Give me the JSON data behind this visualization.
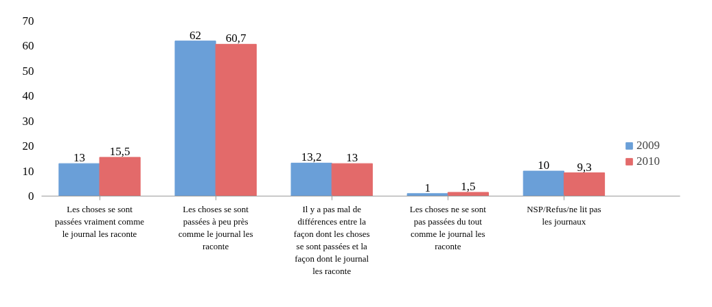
{
  "chart_data": {
    "type": "bar",
    "categories": [
      "Les choses se sont passées vraiment comme le journal les raconte",
      "Les choses se sont passées à peu près comme le journal les raconte",
      "Il y a pas mal de différences entre la façon dont les choses se sont passées et la façon dont le journal les raconte",
      "Les choses ne se sont pas passées du tout comme le journal les raconte",
      "NSP/Refus/ne lit pas les journaux"
    ],
    "series": [
      {
        "name": "2009",
        "color": "#6a9fd8",
        "values": [
          13,
          62,
          13.2,
          1,
          10
        ],
        "value_labels": [
          "13",
          "62",
          "13,2",
          "1",
          "10"
        ]
      },
      {
        "name": "2010",
        "color": "#e36a6a",
        "values": [
          15.5,
          60.7,
          13,
          1.5,
          9.3
        ],
        "value_labels": [
          "15,5",
          "60,7",
          "13",
          "1,5",
          "9,3"
        ]
      }
    ],
    "ylim": [
      0,
      70
    ],
    "yticks": [
      0,
      10,
      20,
      30,
      40,
      50,
      60,
      70
    ],
    "grid": false,
    "legend": "right"
  }
}
